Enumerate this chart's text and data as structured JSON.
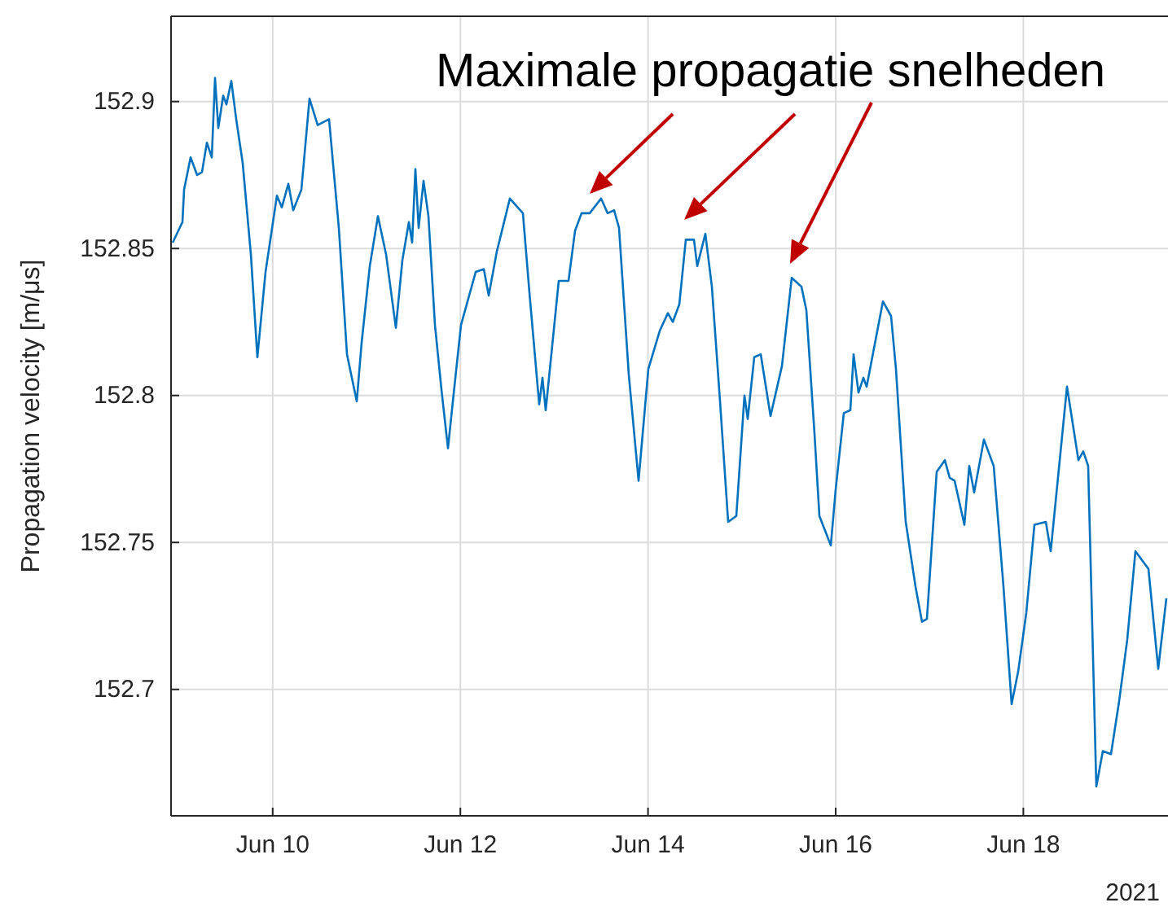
{
  "chart_data": {
    "type": "line",
    "ylabel": "Propagation velocity [m/μs]",
    "annotations": [
      "Maximale propagatie snelheden",
      "2021"
    ],
    "xlim": [
      "2021-06-08T22:00",
      "2021-06-19T13:00"
    ],
    "xticks": [
      {
        "value": "2021-06-10",
        "label": "Jun 10"
      },
      {
        "value": "2021-06-12",
        "label": "Jun 12"
      },
      {
        "value": "2021-06-14",
        "label": "Jun 14"
      },
      {
        "value": "2021-06-16",
        "label": "Jun 16"
      },
      {
        "value": "2021-06-18",
        "label": "Jun 18"
      }
    ],
    "ylim": [
      152.657,
      152.929
    ],
    "yticks": [
      152.7,
      152.75,
      152.8,
      152.85,
      152.9
    ],
    "grid": true,
    "series": [
      {
        "color": "#0072bd",
        "x": [
          "2021-06-08T22:25",
          "2021-06-09T00:55",
          "2021-06-09T01:20",
          "2021-06-09T03:00",
          "2021-06-09T04:40",
          "2021-06-09T05:55",
          "2021-06-09T07:10",
          "2021-06-09T08:25",
          "2021-06-09T09:15",
          "2021-06-09T10:05",
          "2021-06-09T11:20",
          "2021-06-09T12:10",
          "2021-06-09T13:25",
          "2021-06-09T14:40",
          "2021-06-09T16:20",
          "2021-06-09T18:25",
          "2021-06-09T20:05",
          "2021-06-09T22:10",
          "2021-06-10T01:05",
          "2021-06-10T02:20",
          "2021-06-10T04:00",
          "2021-06-10T05:15",
          "2021-06-10T07:20",
          "2021-06-10T09:25",
          "2021-06-10T11:30",
          "2021-06-10T14:25",
          "2021-06-10T16:55",
          "2021-06-10T19:00",
          "2021-06-10T21:30",
          "2021-06-10T22:45",
          "2021-06-11T00:50",
          "2021-06-11T02:55",
          "2021-06-11T05:00",
          "2021-06-11T07:30",
          "2021-06-11T09:10",
          "2021-06-11T10:50",
          "2021-06-11T11:40",
          "2021-06-11T12:30",
          "2021-06-11T13:20",
          "2021-06-11T14:35",
          "2021-06-11T15:50",
          "2021-06-11T17:30",
          "2021-06-11T19:10",
          "2021-06-11T20:50",
          "2021-06-11T22:05",
          "2021-06-12T00:10",
          "2021-06-12T03:55",
          "2021-06-12T06:00",
          "2021-06-12T07:15",
          "2021-06-12T09:20",
          "2021-06-12T12:40",
          "2021-06-12T16:00",
          "2021-06-12T17:40",
          "2021-06-12T20:10",
          "2021-06-12T21:00",
          "2021-06-12T21:50",
          "2021-06-13T01:10",
          "2021-06-13T03:40",
          "2021-06-13T05:20",
          "2021-06-13T07:00",
          "2021-06-13T09:05",
          "2021-06-13T12:00",
          "2021-06-13T13:40",
          "2021-06-13T15:20",
          "2021-06-13T16:35",
          "2021-06-13T19:05",
          "2021-06-13T21:35",
          "2021-06-14T00:05",
          "2021-06-14T03:00",
          "2021-06-14T05:05",
          "2021-06-14T06:20",
          "2021-06-14T08:00",
          "2021-06-14T09:40",
          "2021-06-14T11:45",
          "2021-06-14T12:35",
          "2021-06-14T14:40",
          "2021-06-14T16:20",
          "2021-06-14T18:25",
          "2021-06-14T20:30",
          "2021-06-14T22:35",
          "2021-06-15T00:40",
          "2021-06-15T01:30",
          "2021-06-15T03:10",
          "2021-06-15T04:50",
          "2021-06-15T07:20",
          "2021-06-15T10:15",
          "2021-06-15T12:45",
          "2021-06-15T15:15",
          "2021-06-15T16:30",
          "2021-06-15T18:35",
          "2021-06-15T19:50",
          "2021-06-15T22:45",
          "2021-06-16T00:00",
          "2021-06-16T02:05",
          "2021-06-16T03:45",
          "2021-06-16T04:35",
          "2021-06-16T05:50",
          "2021-06-16T07:05",
          "2021-06-16T07:55",
          "2021-06-16T12:05",
          "2021-06-16T14:10",
          "2021-06-16T15:25",
          "2021-06-16T17:55",
          "2021-06-16T20:25",
          "2021-06-16T22:05",
          "2021-06-16T23:20",
          "2021-06-17T01:50",
          "2021-06-17T03:55",
          "2021-06-17T05:10",
          "2021-06-17T06:25",
          "2021-06-17T08:55",
          "2021-06-17T10:10",
          "2021-06-17T11:25",
          "2021-06-17T13:55",
          "2021-06-17T16:25",
          "2021-06-17T18:55",
          "2021-06-17T21:00",
          "2021-06-17T22:40",
          "2021-06-18T00:45",
          "2021-06-18T02:50",
          "2021-06-18T05:45",
          "2021-06-18T07:00",
          "2021-06-18T11:10",
          "2021-06-18T14:05",
          "2021-06-18T15:20",
          "2021-06-18T16:35",
          "2021-06-18T18:40",
          "2021-06-18T20:20",
          "2021-06-18T22:25",
          "2021-06-19T00:30",
          "2021-06-19T02:35",
          "2021-06-19T04:40",
          "2021-06-19T08:00",
          "2021-06-19T10:30",
          "2021-06-19T12:35"
        ],
        "values": [
          152.852,
          152.859,
          152.87,
          152.881,
          152.875,
          152.876,
          152.886,
          152.881,
          152.908,
          152.891,
          152.902,
          152.899,
          152.907,
          152.894,
          152.879,
          152.848,
          152.813,
          152.842,
          152.868,
          152.864,
          152.872,
          152.863,
          152.87,
          152.901,
          152.892,
          152.894,
          152.857,
          152.814,
          152.798,
          152.818,
          152.844,
          152.861,
          152.848,
          152.823,
          152.846,
          152.859,
          152.852,
          152.877,
          152.857,
          152.873,
          152.861,
          152.824,
          152.802,
          152.782,
          152.798,
          152.824,
          152.842,
          152.843,
          152.834,
          152.849,
          152.867,
          152.862,
          152.835,
          152.797,
          152.806,
          152.795,
          152.839,
          152.839,
          152.856,
          152.862,
          152.862,
          152.867,
          152.862,
          152.863,
          152.857,
          152.807,
          152.771,
          152.809,
          152.822,
          152.828,
          152.825,
          152.831,
          152.853,
          152.853,
          152.844,
          152.855,
          152.837,
          152.798,
          152.757,
          152.759,
          152.8,
          152.792,
          152.813,
          152.814,
          152.793,
          152.81,
          152.84,
          152.837,
          152.829,
          152.787,
          152.759,
          152.749,
          152.768,
          152.794,
          152.795,
          152.814,
          152.801,
          152.806,
          152.803,
          152.832,
          152.827,
          152.809,
          152.757,
          152.735,
          152.723,
          152.724,
          152.774,
          152.778,
          152.772,
          152.771,
          152.756,
          152.776,
          152.767,
          152.785,
          152.776,
          152.735,
          152.695,
          152.706,
          152.726,
          152.756,
          152.757,
          152.747,
          152.803,
          152.778,
          152.781,
          152.776,
          152.667,
          152.679,
          152.678,
          152.696,
          152.717,
          152.747,
          152.741,
          152.707,
          152.731
        ]
      }
    ]
  }
}
